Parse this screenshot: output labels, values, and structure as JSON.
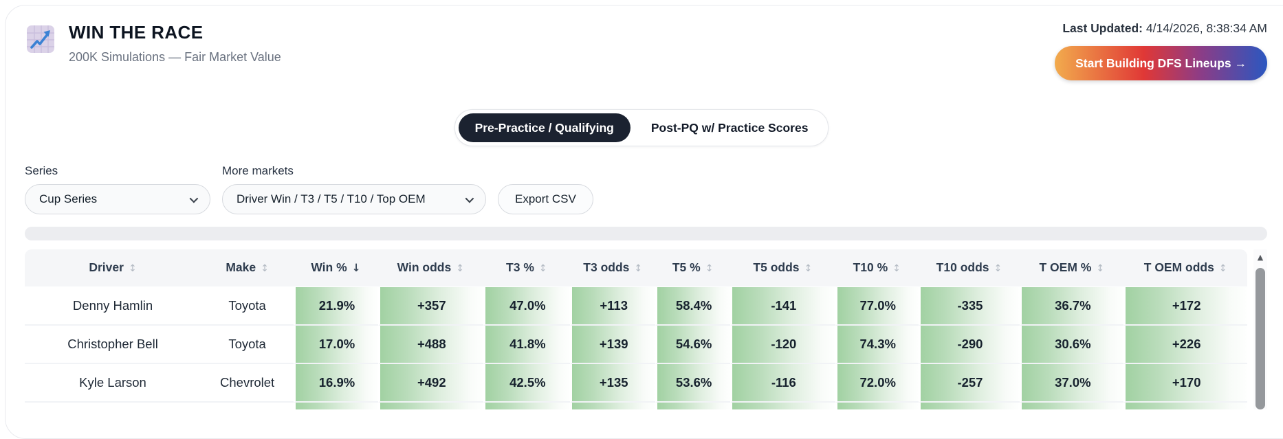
{
  "header": {
    "title": "WIN THE RACE",
    "subtitle": "200K Simulations — Fair Market Value",
    "last_updated_label": "Last Updated:",
    "last_updated_value": "4/14/2026, 8:38:34 AM",
    "cta_label": "Start Building DFS Lineups →",
    "logo_icon": "chart-increasing-emoji"
  },
  "tabs": [
    {
      "label": "Pre-Practice / Qualifying",
      "active": true
    },
    {
      "label": "Post-PQ w/ Practice Scores",
      "active": false
    }
  ],
  "controls": {
    "series_label": "Series",
    "series_value": "Cup Series",
    "series_chevron_icon": "chevron-down",
    "markets_label": "More markets",
    "markets_value": "Driver Win / T3 / T5 / T10 / Top OEM",
    "markets_chevron_icon": "chevron-down",
    "export_label": "Export CSV"
  },
  "table": {
    "columns": [
      {
        "label": "Driver",
        "sort": "none"
      },
      {
        "label": "Make",
        "sort": "none"
      },
      {
        "label": "Win %",
        "sort": "desc"
      },
      {
        "label": "Win odds",
        "sort": "none"
      },
      {
        "label": "T3 %",
        "sort": "none"
      },
      {
        "label": "T3 odds",
        "sort": "none"
      },
      {
        "label": "T5 %",
        "sort": "none"
      },
      {
        "label": "T5 odds",
        "sort": "none"
      },
      {
        "label": "T10 %",
        "sort": "none"
      },
      {
        "label": "T10 odds",
        "sort": "none"
      },
      {
        "label": "T OEM %",
        "sort": "none"
      },
      {
        "label": "T OEM odds",
        "sort": "none"
      }
    ],
    "rows": [
      [
        "Denny Hamlin",
        "Toyota",
        "21.9%",
        "+357",
        "47.0%",
        "+113",
        "58.4%",
        "-141",
        "77.0%",
        "-335",
        "36.7%",
        "+172"
      ],
      [
        "Christopher Bell",
        "Toyota",
        "17.0%",
        "+488",
        "41.8%",
        "+139",
        "54.6%",
        "-120",
        "74.3%",
        "-290",
        "30.6%",
        "+226"
      ],
      [
        "Kyle Larson",
        "Chevrolet",
        "16.9%",
        "+492",
        "42.5%",
        "+135",
        "53.6%",
        "-116",
        "72.0%",
        "-257",
        "37.0%",
        "+170"
      ]
    ],
    "partial_next_row_visible": true
  },
  "scrollbar": {
    "up_arrow_icon": "triangle-up"
  },
  "colors": {
    "cta_gradient": "#f2ab4d 0%, #e03836 42%, #8e3c85 68%, #2b57c0 100%",
    "active_tab": "#1b2230",
    "heat_green": "#a1d1a2",
    "header_bg": "#f5f6f8"
  }
}
